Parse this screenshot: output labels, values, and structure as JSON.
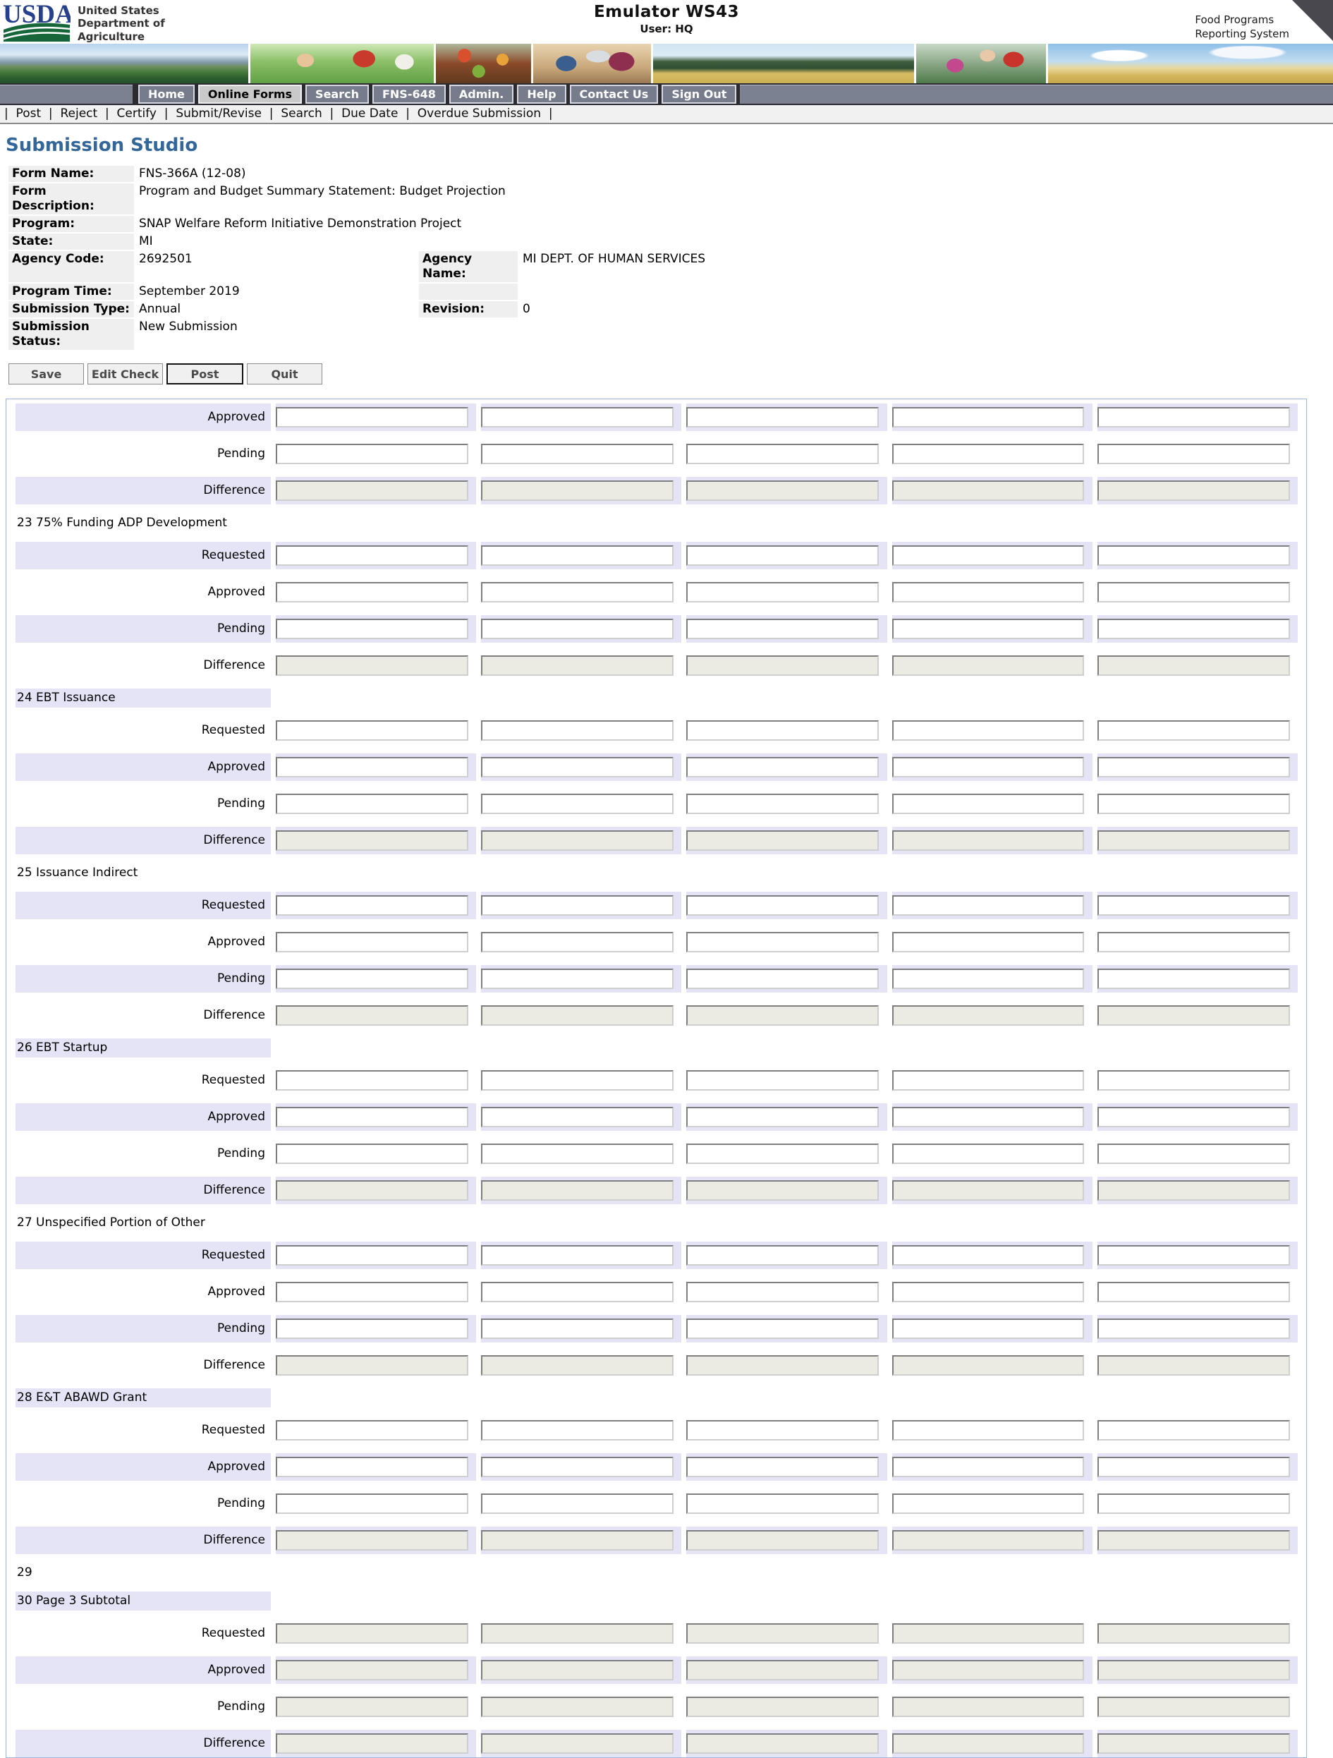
{
  "header": {
    "logo_text": "USDA",
    "dept_lines": [
      "United States",
      "Department of",
      "Agriculture"
    ],
    "app_title": "Emulator WS43",
    "user_line": "User: HQ",
    "system_lines": [
      "Food Programs",
      "Reporting System"
    ]
  },
  "nav": {
    "tabs": [
      {
        "label": "Home",
        "active": false
      },
      {
        "label": "Online Forms",
        "active": true
      },
      {
        "label": "Search",
        "active": false
      },
      {
        "label": "FNS-648",
        "active": false
      },
      {
        "label": "Admin.",
        "active": false
      },
      {
        "label": "Help",
        "active": false
      },
      {
        "label": "Contact Us",
        "active": false
      },
      {
        "label": "Sign Out",
        "active": false
      }
    ]
  },
  "subnav": {
    "items": [
      "Post",
      "Reject",
      "Certify",
      "Submit/Revise",
      "Search",
      "Due Date",
      "Overdue Submission"
    ]
  },
  "page": {
    "title": "Submission Studio"
  },
  "details": {
    "rows": [
      {
        "label": "Form Name:",
        "value": "FNS-366A (12-08)"
      },
      {
        "label": "Form Description:",
        "value": "Program and Budget Summary Statement: Budget Projection"
      },
      {
        "label": "Program:",
        "value": "SNAP Welfare Reform Initiative Demonstration Project"
      },
      {
        "label": "State:",
        "value": "MI"
      },
      {
        "label": "Agency Code:",
        "value": "2692501",
        "label2": "Agency Name:",
        "value2": "MI DEPT. OF HUMAN SERVICES"
      },
      {
        "label": "Program Time:",
        "value": "September 2019",
        "label2": "",
        "value2": ""
      },
      {
        "label": "Submission Type:",
        "value": "Annual",
        "label2": "Revision:",
        "value2": "0"
      },
      {
        "label": "Submission Status:",
        "value": "New Submission"
      }
    ]
  },
  "actions": {
    "buttons": [
      {
        "label": "Save",
        "default": false
      },
      {
        "label": "Edit Check",
        "default": false
      },
      {
        "label": "Post",
        "default": true
      },
      {
        "label": "Quit",
        "default": false
      }
    ]
  },
  "grid": {
    "column_count": 5,
    "leading_rows": [
      {
        "label": "Approved",
        "readonly": false,
        "value": ""
      },
      {
        "label": "Pending",
        "readonly": false,
        "value": ""
      },
      {
        "label": "Difference",
        "readonly": true,
        "value": ""
      }
    ],
    "sections": [
      {
        "title": "23 75% Funding ADP Development",
        "rows": [
          {
            "label": "Requested",
            "readonly": false,
            "value": ""
          },
          {
            "label": "Approved",
            "readonly": false,
            "value": ""
          },
          {
            "label": "Pending",
            "readonly": false,
            "value": ""
          },
          {
            "label": "Difference",
            "readonly": true,
            "value": ""
          }
        ]
      },
      {
        "title": "24 EBT Issuance",
        "rows": [
          {
            "label": "Requested",
            "readonly": false,
            "value": ""
          },
          {
            "label": "Approved",
            "readonly": false,
            "value": ""
          },
          {
            "label": "Pending",
            "readonly": false,
            "value": ""
          },
          {
            "label": "Difference",
            "readonly": true,
            "value": ""
          }
        ]
      },
      {
        "title": "25 Issuance Indirect",
        "rows": [
          {
            "label": "Requested",
            "readonly": false,
            "value": ""
          },
          {
            "label": "Approved",
            "readonly": false,
            "value": ""
          },
          {
            "label": "Pending",
            "readonly": false,
            "value": ""
          },
          {
            "label": "Difference",
            "readonly": true,
            "value": ""
          }
        ]
      },
      {
        "title": "26 EBT Startup",
        "rows": [
          {
            "label": "Requested",
            "readonly": false,
            "value": ""
          },
          {
            "label": "Approved",
            "readonly": false,
            "value": ""
          },
          {
            "label": "Pending",
            "readonly": false,
            "value": ""
          },
          {
            "label": "Difference",
            "readonly": true,
            "value": ""
          }
        ]
      },
      {
        "title": "27 Unspecified Portion of Other",
        "rows": [
          {
            "label": "Requested",
            "readonly": false,
            "value": ""
          },
          {
            "label": "Approved",
            "readonly": false,
            "value": ""
          },
          {
            "label": "Pending",
            "readonly": false,
            "value": ""
          },
          {
            "label": "Difference",
            "readonly": true,
            "value": ""
          }
        ]
      },
      {
        "title": "28 E&T ABAWD Grant",
        "rows": [
          {
            "label": "Requested",
            "readonly": false,
            "value": ""
          },
          {
            "label": "Approved",
            "readonly": false,
            "value": ""
          },
          {
            "label": "Pending",
            "readonly": false,
            "value": ""
          },
          {
            "label": "Difference",
            "readonly": true,
            "value": ""
          }
        ]
      },
      {
        "title": "29",
        "rows": []
      },
      {
        "title": "30 Page 3 Subtotal",
        "rows": [
          {
            "label": "Requested",
            "readonly": true,
            "value": ""
          },
          {
            "label": "Approved",
            "readonly": true,
            "value": ""
          },
          {
            "label": "Pending",
            "readonly": true,
            "value": ""
          },
          {
            "label": "Difference",
            "readonly": true,
            "value": ""
          }
        ]
      }
    ]
  },
  "colors": {
    "title_blue": "#336699",
    "stripe_lavender": "#e4e4f6",
    "readonly_grey": "#ebebe4",
    "tab_slate": "#767c8c",
    "tab_active_grey": "#c9c9c9",
    "usda_blue": "#27408b",
    "usda_green": "#17663a"
  }
}
